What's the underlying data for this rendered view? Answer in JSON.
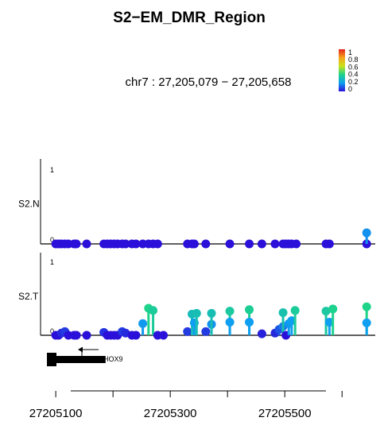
{
  "chart_data": {
    "type": "scatter",
    "title": "S2−EM_DMR_Region",
    "subtitle": "chr7 : 27,205,079 − 27,205,658",
    "xlim": [
      27205079,
      27205658
    ],
    "x_ticks": [
      27205100,
      27205300,
      27205500
    ],
    "y_ticks": [
      "0",
      "1"
    ],
    "ylim": [
      0,
      1
    ],
    "colorbar": {
      "labels": [
        "1",
        "0.8",
        "0.6",
        "0.4",
        "0.2",
        "0"
      ],
      "colors": [
        "#d7191c",
        "#f59a1d",
        "#d8e21c",
        "#2bd24a",
        "#12c8e6",
        "#3a1fd9"
      ]
    },
    "series": [
      {
        "name": "S2.N",
        "points": [
          [
            27205100,
            0.0
          ],
          [
            27205105,
            0.0
          ],
          [
            27205110,
            0.0
          ],
          [
            27205116,
            0.0
          ],
          [
            27205122,
            0.0
          ],
          [
            27205132,
            0.0
          ],
          [
            27205136,
            0.0
          ],
          [
            27205154,
            0.0
          ],
          [
            27205184,
            0.0
          ],
          [
            27205190,
            0.0
          ],
          [
            27205196,
            0.0
          ],
          [
            27205202,
            0.0
          ],
          [
            27205208,
            0.0
          ],
          [
            27205216,
            0.0
          ],
          [
            27205222,
            0.0
          ],
          [
            27205233,
            0.0
          ],
          [
            27205240,
            0.0
          ],
          [
            27205252,
            0.0
          ],
          [
            27205262,
            0.0
          ],
          [
            27205270,
            0.0
          ],
          [
            27205278,
            0.0
          ],
          [
            27205330,
            0.0
          ],
          [
            27205338,
            0.0
          ],
          [
            27205342,
            0.0
          ],
          [
            27205362,
            0.0
          ],
          [
            27205404,
            0.0
          ],
          [
            27205438,
            0.0
          ],
          [
            27205460,
            0.0
          ],
          [
            27205483,
            0.0
          ],
          [
            27205497,
            0.0
          ],
          [
            27205502,
            0.0
          ],
          [
            27205507,
            0.0
          ],
          [
            27205512,
            0.0
          ],
          [
            27205520,
            0.0
          ],
          [
            27205572,
            0.0
          ],
          [
            27205578,
            0.0
          ],
          [
            27205643,
            0.0
          ],
          [
            27205643,
            0.15
          ]
        ]
      },
      {
        "name": "S2.T",
        "points": [
          [
            27205100,
            0.0
          ],
          [
            27205105,
            0.0
          ],
          [
            27205110,
            0.03
          ],
          [
            27205116,
            0.05
          ],
          [
            27205122,
            0.0
          ],
          [
            27205132,
            0.0
          ],
          [
            27205136,
            0.0
          ],
          [
            27205154,
            0.0
          ],
          [
            27205184,
            0.04
          ],
          [
            27205190,
            0.0
          ],
          [
            27205196,
            0.0
          ],
          [
            27205202,
            0.0
          ],
          [
            27205208,
            0.0
          ],
          [
            27205216,
            0.05
          ],
          [
            27205222,
            0.03
          ],
          [
            27205233,
            0.0
          ],
          [
            27205240,
            0.0
          ],
          [
            27205252,
            0.16
          ],
          [
            27205262,
            0.37
          ],
          [
            27205270,
            0.34
          ],
          [
            27205278,
            0.0
          ],
          [
            27205288,
            0.0
          ],
          [
            27205330,
            0.05
          ],
          [
            27205338,
            0.29
          ],
          [
            27205342,
            0.17
          ],
          [
            27205346,
            0.3
          ],
          [
            27205362,
            0.05
          ],
          [
            27205372,
            0.15
          ],
          [
            27205372,
            0.3
          ],
          [
            27205404,
            0.33
          ],
          [
            27205404,
            0.18
          ],
          [
            27205438,
            0.35
          ],
          [
            27205438,
            0.18
          ],
          [
            27205460,
            0.02
          ],
          [
            27205483,
            0.03
          ],
          [
            27205490,
            0.08
          ],
          [
            27205497,
            0.12
          ],
          [
            27205497,
            0.31
          ],
          [
            27205502,
            0.0
          ],
          [
            27205507,
            0.16
          ],
          [
            27205512,
            0.2
          ],
          [
            27205518,
            0.34
          ],
          [
            27205572,
            0.33
          ],
          [
            27205578,
            0.18
          ],
          [
            27205584,
            0.36
          ],
          [
            27205643,
            0.39
          ],
          [
            27205643,
            0.17
          ]
        ]
      }
    ],
    "gene": {
      "label": "HOX9",
      "start": 27205079,
      "end": 27205187,
      "strand": "-"
    }
  }
}
